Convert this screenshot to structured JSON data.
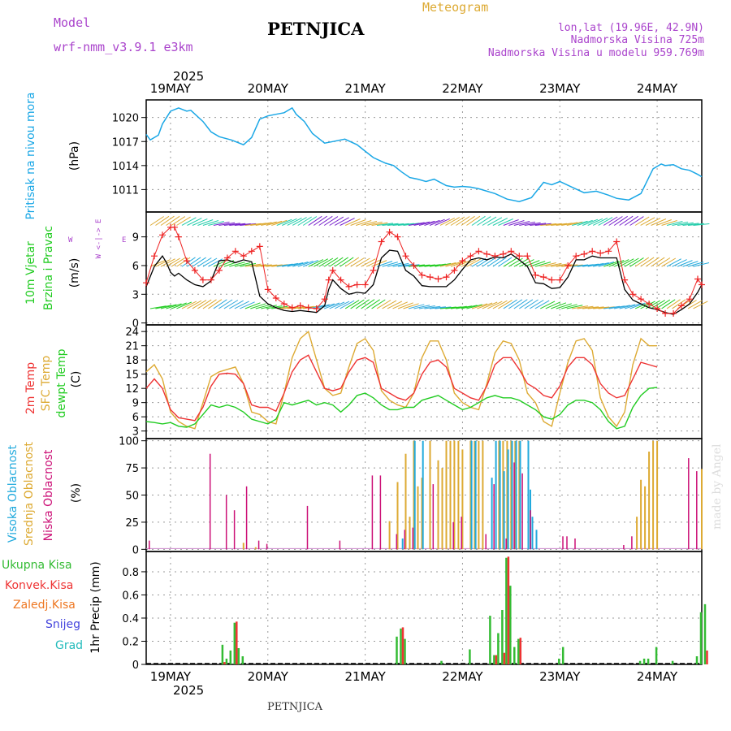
{
  "header": {
    "model_label": "Model",
    "model_name": "wrf-nmm_v3.9.1 e3km",
    "station": "PETNJICA",
    "product": "Meteogram",
    "coords": "lon,lat (19.96E, 42.9N)",
    "elevation": "Nadmorska Visina 725m",
    "model_elevation": "Nadmorska Visina u modelu 959.769m",
    "year": "2025",
    "footer_station": "PETNJICA",
    "credit": "made by Angel"
  },
  "colors": {
    "pressure": "#1aa7e6",
    "wind_speed": "#000000",
    "gust": "#ee2222",
    "t2m": "#ee3333",
    "tsfc": "#ddaa33",
    "dewpoint": "#22cc22",
    "cloud_high": "#22aadd",
    "cloud_mid": "#ddaa33",
    "cloud_low": "#cc1177",
    "precip_total": "#33bb33",
    "precip_conv": "#ee3333",
    "precip_frozen": "#ee7722",
    "precip_snow": "#4444dd",
    "precip_hail": "#22bbbb",
    "label_purple": "#aa44cc"
  },
  "time_axis": {
    "days": [
      "19MAY",
      "20MAY",
      "21MAY",
      "22MAY",
      "23MAY",
      "24MAY"
    ],
    "start_hour_offset": -6,
    "end_hour": 131
  },
  "chart_data": [
    {
      "id": "pressure",
      "type": "line",
      "ylabel": "Pritisak na nivou mora",
      "unit": "(hPa)",
      "yticks": [
        1011,
        1014,
        1017,
        1020
      ],
      "ylim": [
        1008.2,
        1022.2
      ],
      "hours": [
        -6,
        -5,
        -3,
        -2,
        0,
        2,
        4,
        5,
        8,
        10,
        12,
        15,
        18,
        20,
        22,
        24,
        26,
        28,
        30,
        31,
        33,
        35,
        37,
        38,
        40,
        43,
        46,
        48,
        50,
        53,
        55,
        57,
        59,
        61,
        63,
        65,
        68,
        70,
        72,
        74,
        76,
        80,
        83,
        86,
        89,
        92,
        94,
        96,
        99,
        102,
        105,
        108,
        110,
        113,
        116,
        119,
        121,
        122,
        124,
        126,
        128,
        130,
        131
      ],
      "values": [
        1017.9,
        1017.2,
        1017.8,
        1019.2,
        1020.8,
        1021.2,
        1020.8,
        1020.9,
        1019.5,
        1018.2,
        1017.6,
        1017.2,
        1016.6,
        1017.5,
        1019.8,
        1020.2,
        1020.4,
        1020.6,
        1021.2,
        1020.4,
        1019.5,
        1018.0,
        1017.2,
        1016.8,
        1017.0,
        1017.3,
        1016.6,
        1015.8,
        1015.0,
        1014.3,
        1014.0,
        1013.2,
        1012.5,
        1012.3,
        1012.0,
        1012.3,
        1011.5,
        1011.3,
        1011.4,
        1011.3,
        1011.1,
        1010.5,
        1009.8,
        1009.5,
        1010.0,
        1011.9,
        1011.6,
        1012.0,
        1011.3,
        1010.6,
        1010.8,
        1010.3,
        1009.9,
        1009.7,
        1010.5,
        1013.6,
        1014.2,
        1014.0,
        1014.1,
        1013.6,
        1013.4,
        1012.9,
        1012.6
      ]
    },
    {
      "id": "wind",
      "type": "line",
      "ylabel": "10m Vjetar",
      "ylabel2": "Brzina i Pravac",
      "unit": "(m/s)",
      "compass": "W <-|-> E",
      "yticks": [
        0,
        3,
        6,
        9
      ],
      "ylim": [
        -0.2,
        11.6
      ],
      "speed_hours": [
        -6,
        -4,
        -2,
        -1,
        0,
        1,
        2,
        4,
        6,
        8,
        10,
        12,
        14,
        16,
        18,
        20,
        22,
        24,
        26,
        28,
        30,
        32,
        34,
        36,
        38,
        39,
        40,
        42,
        44,
        46,
        48,
        50,
        52,
        54,
        56,
        58,
        60,
        62,
        64,
        66,
        68,
        70,
        72,
        74,
        76,
        78,
        80,
        82,
        84,
        86,
        88,
        90,
        92,
        94,
        96,
        98,
        100,
        102,
        104,
        106,
        108,
        110,
        112,
        114,
        116,
        118,
        120,
        122,
        124,
        126,
        128,
        130,
        131
      ],
      "speed": [
        3.8,
        5.9,
        7.0,
        6.3,
        5.3,
        4.9,
        5.2,
        4.5,
        4.0,
        3.8,
        4.4,
        6.5,
        6.6,
        6.3,
        6.6,
        6.4,
        2.8,
        2.0,
        1.6,
        1.3,
        1.2,
        1.3,
        1.2,
        1.1,
        1.8,
        3.5,
        4.5,
        3.6,
        3.0,
        3.2,
        3.1,
        4.0,
        6.8,
        7.6,
        7.5,
        5.5,
        4.9,
        3.9,
        3.8,
        3.8,
        3.8,
        4.5,
        5.6,
        6.6,
        6.8,
        6.6,
        6.9,
        6.8,
        7.2,
        6.6,
        5.9,
        4.2,
        4.1,
        3.6,
        3.7,
        4.8,
        6.6,
        6.6,
        7.0,
        6.8,
        6.8,
        6.8,
        3.5,
        2.4,
        2.0,
        1.6,
        1.4,
        1.1,
        0.9,
        1.4,
        2.0,
        3.2,
        4.0
      ],
      "gust_hours": [
        -6,
        -4,
        -2,
        0,
        1,
        2,
        4,
        6,
        8,
        10,
        12,
        14,
        16,
        18,
        20,
        22,
        24,
        26,
        28,
        30,
        32,
        34,
        36,
        38,
        39,
        40,
        42,
        44,
        46,
        48,
        50,
        52,
        54,
        56,
        58,
        60,
        62,
        64,
        66,
        68,
        70,
        72,
        74,
        76,
        78,
        80,
        82,
        84,
        86,
        88,
        90,
        92,
        94,
        96,
        98,
        100,
        102,
        104,
        106,
        108,
        110,
        112,
        114,
        116,
        118,
        120,
        122,
        124,
        126,
        128,
        130,
        131
      ],
      "gust": [
        4.2,
        7.0,
        9.2,
        10.0,
        10.0,
        9.0,
        6.5,
        5.5,
        4.5,
        4.5,
        5.5,
        6.8,
        7.5,
        7.0,
        7.5,
        8.0,
        3.5,
        2.6,
        2.0,
        1.6,
        1.8,
        1.6,
        1.5,
        2.5,
        4.5,
        5.5,
        4.5,
        3.8,
        4.0,
        4.0,
        5.5,
        8.5,
        9.5,
        9.0,
        7.0,
        6.0,
        5.0,
        4.8,
        4.6,
        4.8,
        5.5,
        6.5,
        7.0,
        7.5,
        7.2,
        7.0,
        7.2,
        7.5,
        7.0,
        7.0,
        5.0,
        4.8,
        4.5,
        4.5,
        6.0,
        7.0,
        7.2,
        7.5,
        7.3,
        7.5,
        8.5,
        4.5,
        3.0,
        2.5,
        2.0,
        1.5,
        1.0,
        1.0,
        1.8,
        2.5,
        4.6,
        4.0
      ]
    },
    {
      "id": "temperature",
      "type": "line",
      "ylabel": "2m Temp",
      "ylabel2": "SFC Temp",
      "ylabel3": "dewpt Temp",
      "unit": "(C)",
      "yticks": [
        3,
        6,
        9,
        12,
        15,
        18,
        21,
        24
      ],
      "ylim": [
        1.4,
        25.4
      ],
      "hours": [
        -6,
        -4,
        -2,
        0,
        2,
        4,
        6,
        8,
        10,
        12,
        14,
        16,
        18,
        20,
        22,
        24,
        26,
        28,
        30,
        32,
        34,
        36,
        38,
        40,
        42,
        44,
        46,
        48,
        50,
        52,
        54,
        56,
        58,
        60,
        62,
        64,
        66,
        68,
        70,
        72,
        74,
        76,
        78,
        80,
        82,
        84,
        86,
        88,
        90,
        92,
        94,
        96,
        98,
        100,
        102,
        104,
        106,
        108,
        110,
        112,
        114,
        116,
        118,
        120,
        122,
        124,
        126,
        128,
        130,
        131
      ],
      "t2m": [
        12.0,
        14.0,
        12.0,
        7.5,
        5.8,
        5.5,
        5.2,
        8.0,
        12.5,
        15.0,
        15.2,
        15.0,
        13.0,
        8.5,
        8.0,
        8.0,
        7.2,
        11.0,
        15.5,
        18.0,
        19.0,
        15.5,
        12.0,
        11.5,
        12.0,
        15.5,
        18.0,
        18.5,
        17.5,
        12.0,
        11.0,
        10.0,
        9.5,
        11.0,
        15.0,
        17.5,
        18.0,
        16.5,
        12.0,
        11.0,
        10.0,
        9.5,
        12.5,
        17.0,
        18.5,
        18.5,
        16.0,
        13.0,
        12.0,
        10.5,
        10.0,
        12.5,
        16.5,
        18.5,
        18.5,
        17.0,
        13.0,
        11.0,
        10.0,
        10.5,
        14.0,
        17.5,
        17.0,
        16.5
      ],
      "tsfc": [
        15.5,
        17.0,
        14.0,
        7.0,
        5.0,
        4.0,
        3.5,
        9.0,
        14.5,
        15.5,
        16.0,
        16.5,
        13.0,
        7.0,
        6.5,
        5.0,
        4.5,
        11.0,
        18.5,
        22.5,
        24.0,
        18.0,
        12.0,
        10.5,
        11.0,
        16.5,
        21.5,
        22.5,
        20.0,
        11.5,
        9.5,
        8.5,
        8.0,
        11.0,
        18.5,
        22.0,
        22.0,
        18.0,
        11.0,
        9.0,
        8.0,
        7.5,
        13.0,
        19.5,
        22.0,
        21.5,
        18.0,
        11.0,
        9.0,
        5.0,
        4.0,
        11.0,
        17.5,
        22.0,
        22.5,
        20.0,
        10.0,
        6.0,
        4.0,
        7.0,
        17.0,
        22.5,
        21.0,
        21.0
      ],
      "dewpoint": [
        5.0,
        4.8,
        4.5,
        4.8,
        4.0,
        3.8,
        4.5,
        6.5,
        8.5,
        8.0,
        8.5,
        8.0,
        7.0,
        5.5,
        5.0,
        4.5,
        5.5,
        9.0,
        8.5,
        9.0,
        9.5,
        8.5,
        9.0,
        8.5,
        7.0,
        8.5,
        10.5,
        11.0,
        10.0,
        8.5,
        7.5,
        7.5,
        8.0,
        8.0,
        9.5,
        10.0,
        10.5,
        9.5,
        8.5,
        7.5,
        8.0,
        9.0,
        10.0,
        10.5,
        10.0,
        10.0,
        9.5,
        8.5,
        7.5,
        6.0,
        5.5,
        6.5,
        8.5,
        9.5,
        9.5,
        9.0,
        7.5,
        5.0,
        3.5,
        4.0,
        8.0,
        10.5,
        12.0,
        12.2
      ]
    },
    {
      "id": "clouds",
      "type": "bar",
      "ylabel": "Visoka Oblacnost",
      "ylabel2": "Srednja Oblacnost",
      "ylabel3": "Niska Oblacnost",
      "unit": "(%)",
      "yticks": [
        0,
        25,
        50,
        75,
        100
      ],
      "ylim": [
        -2,
        102
      ],
      "low": [
        [
          -5,
          8
        ],
        [
          10,
          88
        ],
        [
          14,
          50
        ],
        [
          16,
          36
        ],
        [
          19,
          58
        ],
        [
          22,
          8
        ],
        [
          24,
          5
        ],
        [
          34,
          40
        ],
        [
          42,
          8
        ],
        [
          50,
          68
        ],
        [
          52,
          68
        ],
        [
          56,
          14
        ],
        [
          58,
          18
        ],
        [
          60,
          20
        ],
        [
          65,
          60
        ],
        [
          70,
          25
        ],
        [
          72,
          30
        ],
        [
          78,
          14
        ],
        [
          80,
          60
        ],
        [
          83,
          10
        ],
        [
          85,
          80
        ],
        [
          87,
          70
        ],
        [
          89,
          36
        ],
        [
          97,
          12
        ],
        [
          98,
          12
        ],
        [
          100,
          10
        ],
        [
          112,
          4
        ],
        [
          114,
          12
        ],
        [
          128,
          84
        ],
        [
          130,
          72
        ]
      ],
      "mid": [
        [
          18,
          6
        ],
        [
          21,
          2
        ],
        [
          54,
          26
        ],
        [
          56,
          62
        ],
        [
          58,
          88
        ],
        [
          59,
          30
        ],
        [
          60,
          100
        ],
        [
          61,
          58
        ],
        [
          62,
          66
        ],
        [
          64,
          100
        ],
        [
          66,
          82
        ],
        [
          67,
          75
        ],
        [
          68,
          100
        ],
        [
          69,
          100
        ],
        [
          70,
          100
        ],
        [
          71,
          100
        ],
        [
          72,
          92
        ],
        [
          74,
          100
        ],
        [
          75,
          100
        ],
        [
          76,
          100
        ],
        [
          77,
          100
        ],
        [
          81,
          100
        ],
        [
          82,
          100
        ],
        [
          83,
          100
        ],
        [
          84,
          100
        ],
        [
          85,
          100
        ],
        [
          86,
          100
        ],
        [
          115,
          30
        ],
        [
          116,
          64
        ],
        [
          117,
          58
        ],
        [
          118,
          90
        ],
        [
          119,
          100
        ],
        [
          120,
          100
        ],
        [
          131,
          74
        ]
      ],
      "high": [
        [
          57,
          10
        ],
        [
          60,
          100
        ],
        [
          62,
          100
        ],
        [
          74,
          100
        ],
        [
          75,
          100
        ],
        [
          79,
          66
        ],
        [
          80,
          100
        ],
        [
          81,
          100
        ],
        [
          82,
          72
        ],
        [
          83,
          92
        ],
        [
          84,
          100
        ],
        [
          85,
          100
        ],
        [
          86,
          100
        ],
        [
          88,
          100
        ],
        [
          88.5,
          55
        ],
        [
          89,
          30
        ],
        [
          90,
          18
        ]
      ]
    },
    {
      "id": "precip",
      "type": "bar",
      "ylabel": "1hr Precip (mm)",
      "legend": [
        "Ukupna Kisa",
        "Konvek.Kisa",
        "Zaledj.Kisa",
        "Snijeg",
        "Grad"
      ],
      "yticks": [
        0,
        0.2,
        0.4,
        0.6,
        0.8
      ],
      "ylim": [
        0,
        0.975
      ],
      "total": [
        [
          13,
          0.17
        ],
        [
          14,
          0.05
        ],
        [
          15,
          0.12
        ],
        [
          16,
          0.36
        ],
        [
          17,
          0.14
        ],
        [
          18,
          0.07
        ],
        [
          56,
          0.24
        ],
        [
          57,
          0.31
        ],
        [
          58,
          0.22
        ],
        [
          67,
          0.03
        ],
        [
          74,
          0.13
        ],
        [
          79,
          0.42
        ],
        [
          80,
          0.08
        ],
        [
          81,
          0.27
        ],
        [
          82,
          0.47
        ],
        [
          83,
          0.92
        ],
        [
          84,
          0.68
        ],
        [
          85,
          0.15
        ],
        [
          86,
          0.22
        ],
        [
          96,
          0.05
        ],
        [
          97,
          0.15
        ],
        [
          116,
          0.03
        ],
        [
          117,
          0.05
        ],
        [
          118,
          0.05
        ],
        [
          120,
          0.15
        ],
        [
          124,
          0.03
        ],
        [
          130,
          0.07
        ],
        [
          131,
          0.45
        ],
        [
          132,
          0.52
        ]
      ],
      "conv": [
        [
          13,
          0.02
        ],
        [
          16,
          0.37
        ],
        [
          57,
          0.32
        ],
        [
          80,
          0.08
        ],
        [
          82,
          0.1
        ],
        [
          83,
          0.93
        ],
        [
          86,
          0.23
        ],
        [
          132,
          0.12
        ]
      ]
    }
  ]
}
